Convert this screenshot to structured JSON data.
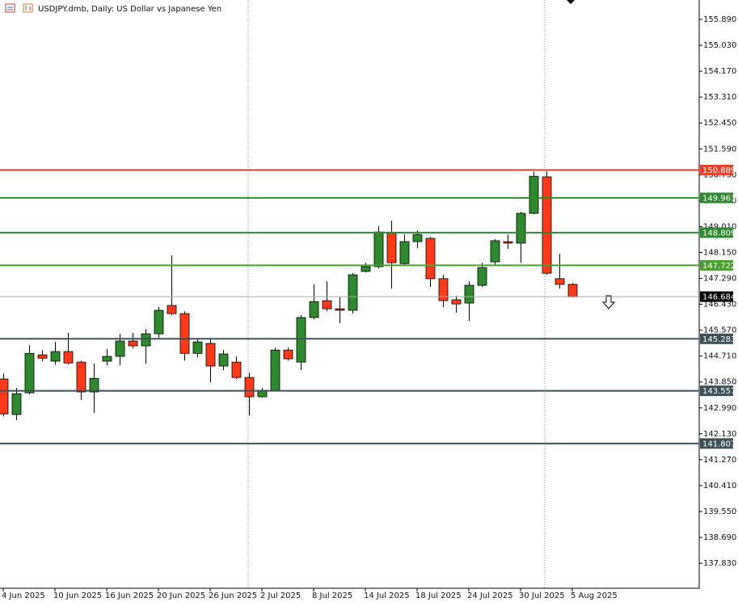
{
  "chart_data": {
    "type": "candlestick",
    "title": "USDJPY.dmb, Daily:  US Dollar vs Japanese Yen",
    "categories": [
      "4 Jun 2025",
      null,
      null,
      null,
      "10 Jun 2025",
      null,
      null,
      null,
      "16 Jun 2025",
      null,
      null,
      null,
      "20 Jun 2025",
      null,
      null,
      null,
      "26 Jun 2025",
      null,
      null,
      null,
      "2 Jul 2025",
      null,
      null,
      null,
      "8 Jul 2025",
      null,
      null,
      null,
      "14 Jul 2025",
      null,
      null,
      null,
      "18 Jul 2025",
      null,
      null,
      null,
      "24 Jul 2025",
      null,
      null,
      null,
      "30 Jul 2025",
      null,
      null,
      null,
      "5 Aug 2025"
    ],
    "open": [
      143.95,
      142.77,
      143.49,
      144.75,
      144.54,
      144.86,
      144.51,
      143.52,
      144.54,
      144.7,
      145.21,
      145.05,
      145.45,
      146.39,
      146.12,
      144.8,
      145.13,
      144.38,
      144.51,
      144.0,
      143.36,
      143.57,
      144.91,
      144.51,
      145.99,
      146.55,
      146.28,
      146.23,
      147.52,
      147.68,
      148.8,
      147.78,
      148.51,
      148.62,
      147.28,
      146.58,
      146.47,
      147.06,
      147.84,
      148.51,
      148.46,
      149.45,
      150.66,
      147.28,
      147.09
    ],
    "high": [
      144.13,
      143.65,
      145.07,
      144.91,
      145.18,
      145.48,
      144.56,
      144.46,
      144.94,
      145.45,
      145.48,
      145.61,
      146.34,
      148.05,
      146.2,
      145.26,
      145.26,
      144.91,
      144.7,
      144.16,
      143.65,
      144.99,
      144.99,
      146.07,
      147.09,
      147.19,
      146.66,
      147.46,
      147.81,
      149.02,
      149.21,
      148.75,
      148.88,
      148.67,
      147.41,
      146.71,
      147.19,
      147.81,
      148.59,
      148.75,
      149.5,
      150.84,
      150.84,
      148.11,
      147.14
    ],
    "low": [
      142.71,
      142.58,
      143.44,
      144.54,
      144.43,
      144.43,
      143.25,
      142.82,
      144.4,
      144.4,
      144.97,
      144.46,
      145.32,
      146.07,
      144.56,
      144.67,
      143.84,
      144.24,
      143.95,
      142.74,
      143.33,
      143.54,
      144.56,
      144.24,
      145.93,
      146.2,
      145.8,
      146.12,
      147.49,
      147.62,
      146.95,
      147.73,
      148.29,
      147.01,
      146.34,
      146.15,
      145.88,
      147.01,
      147.73,
      148.27,
      147.81,
      149.42,
      147.41,
      146.95,
      146.66
    ],
    "close": [
      142.79,
      143.46,
      144.8,
      144.64,
      144.86,
      144.48,
      143.52,
      143.97,
      144.7,
      145.21,
      145.05,
      145.45,
      146.23,
      146.12,
      144.8,
      145.18,
      144.38,
      144.78,
      144.0,
      143.36,
      143.57,
      144.91,
      144.62,
      145.99,
      146.52,
      146.28,
      146.23,
      147.41,
      147.68,
      148.83,
      147.81,
      148.51,
      148.75,
      147.28,
      146.55,
      146.44,
      147.06,
      147.65,
      148.54,
      148.46,
      149.45,
      150.68,
      147.46,
      147.09,
      146.68
    ],
    "up_color": "#2f8a2f",
    "down_color": "#ff3a1a",
    "ylim": [
      137.0,
      156.534
    ],
    "yticks": [
      {
        "value": 155.89,
        "label": "155.890"
      },
      {
        "value": 155.03,
        "label": "155.030"
      },
      {
        "value": 154.17,
        "label": "154.170"
      },
      {
        "value": 153.31,
        "label": "153.310"
      },
      {
        "value": 152.45,
        "label": "152.450"
      },
      {
        "value": 151.59,
        "label": "151.590"
      },
      {
        "value": 150.73,
        "label": "150.730"
      },
      {
        "value": 149.87,
        "label": "149.870"
      },
      {
        "value": 149.01,
        "label": "149.010"
      },
      {
        "value": 148.15,
        "label": "148.150"
      },
      {
        "value": 147.29,
        "label": "147.290"
      },
      {
        "value": 146.43,
        "label": "146.430"
      },
      {
        "value": 145.57,
        "label": "145.570"
      },
      {
        "value": 144.71,
        "label": "144.710"
      },
      {
        "value": 143.85,
        "label": "143.850"
      },
      {
        "value": 142.99,
        "label": "142.990"
      },
      {
        "value": 142.13,
        "label": "142.130"
      },
      {
        "value": 141.27,
        "label": "141.270"
      },
      {
        "value": 140.41,
        "label": "140.410"
      },
      {
        "value": 139.55,
        "label": "139.550"
      },
      {
        "value": 138.69,
        "label": "138.690"
      },
      {
        "value": 137.83,
        "label": "137.830"
      }
    ],
    "levels": [
      {
        "value": 150.889,
        "color": "#e8402c"
      },
      {
        "value": 149.963,
        "color": "#2f8a2f"
      },
      {
        "value": 148.809,
        "color": "#2f8a2f"
      },
      {
        "value": 147.722,
        "color": "#4c9e34"
      },
      {
        "value": 146.684,
        "color": "#000000"
      },
      {
        "value": 145.283,
        "color": "#3d5157"
      },
      {
        "value": 143.557,
        "color": "#3d5157"
      },
      {
        "value": 141.807,
        "color": "#3d5157"
      }
    ]
  }
}
